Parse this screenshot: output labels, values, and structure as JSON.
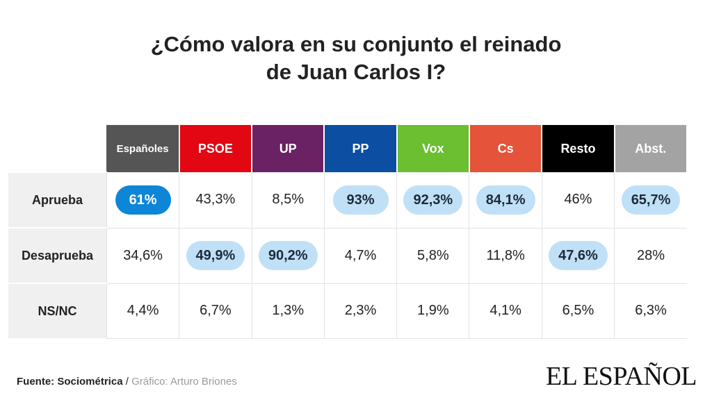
{
  "title_lines": [
    "¿Cómo valora en su conjunto el reinado",
    "de Juan Carlos I?"
  ],
  "columns": [
    {
      "label": "Españoles",
      "color": "#555555"
    },
    {
      "label": "PSOE",
      "color": "#e30613"
    },
    {
      "label": "UP",
      "color": "#6b2264"
    },
    {
      "label": "PP",
      "color": "#0b4ea2"
    },
    {
      "label": "Vox",
      "color": "#6bbf30"
    },
    {
      "label": "Cs",
      "color": "#e4533a"
    },
    {
      "label": "Resto",
      "color": "#000000"
    },
    {
      "label": "Abst.",
      "color": "#a3a3a3"
    }
  ],
  "rows": [
    {
      "label": "Aprueba",
      "values": [
        "61%",
        "43,3%",
        "8,5%",
        "93%",
        "92,3%",
        "84,1%",
        "46%",
        "65,7%"
      ],
      "highlight": [
        "dark",
        "",
        "",
        "light",
        "light",
        "light",
        "",
        "light"
      ]
    },
    {
      "label": "Desaprueba",
      "values": [
        "34,6%",
        "49,9%",
        "90,2%",
        "4,7%",
        "5,8%",
        "11,8%",
        "47,6%",
        "28%"
      ],
      "highlight": [
        "",
        "light",
        "light",
        "",
        "",
        "",
        "light",
        ""
      ]
    },
    {
      "label": "NS/NC",
      "values": [
        "4,4%",
        "6,7%",
        "1,3%",
        "2,3%",
        "1,9%",
        "4,1%",
        "6,5%",
        "6,3%"
      ],
      "highlight": [
        "",
        "",
        "",
        "",
        "",
        "",
        "",
        ""
      ]
    }
  ],
  "chart_data": {
    "type": "table",
    "title": "¿Cómo valora en su conjunto el reinado de Juan Carlos I?",
    "columns": [
      "Españoles",
      "PSOE",
      "UP",
      "PP",
      "Vox",
      "Cs",
      "Resto",
      "Abst."
    ],
    "rows": [
      {
        "name": "Aprueba",
        "values": [
          61,
          43.3,
          8.5,
          93,
          92.3,
          84.1,
          46,
          65.7
        ]
      },
      {
        "name": "Desaprueba",
        "values": [
          34.6,
          49.9,
          90.2,
          4.7,
          5.8,
          11.8,
          47.6,
          28
        ]
      },
      {
        "name": "NS/NC",
        "values": [
          4.4,
          6.7,
          1.3,
          2.3,
          1.9,
          4.1,
          6.5,
          6.3
        ]
      }
    ]
  },
  "footer": {
    "source": "Fuente: Sociométrica",
    "separator": " / ",
    "credit": "Gráfico: Arturo Briones"
  },
  "logo": "EL ESPAÑOL"
}
